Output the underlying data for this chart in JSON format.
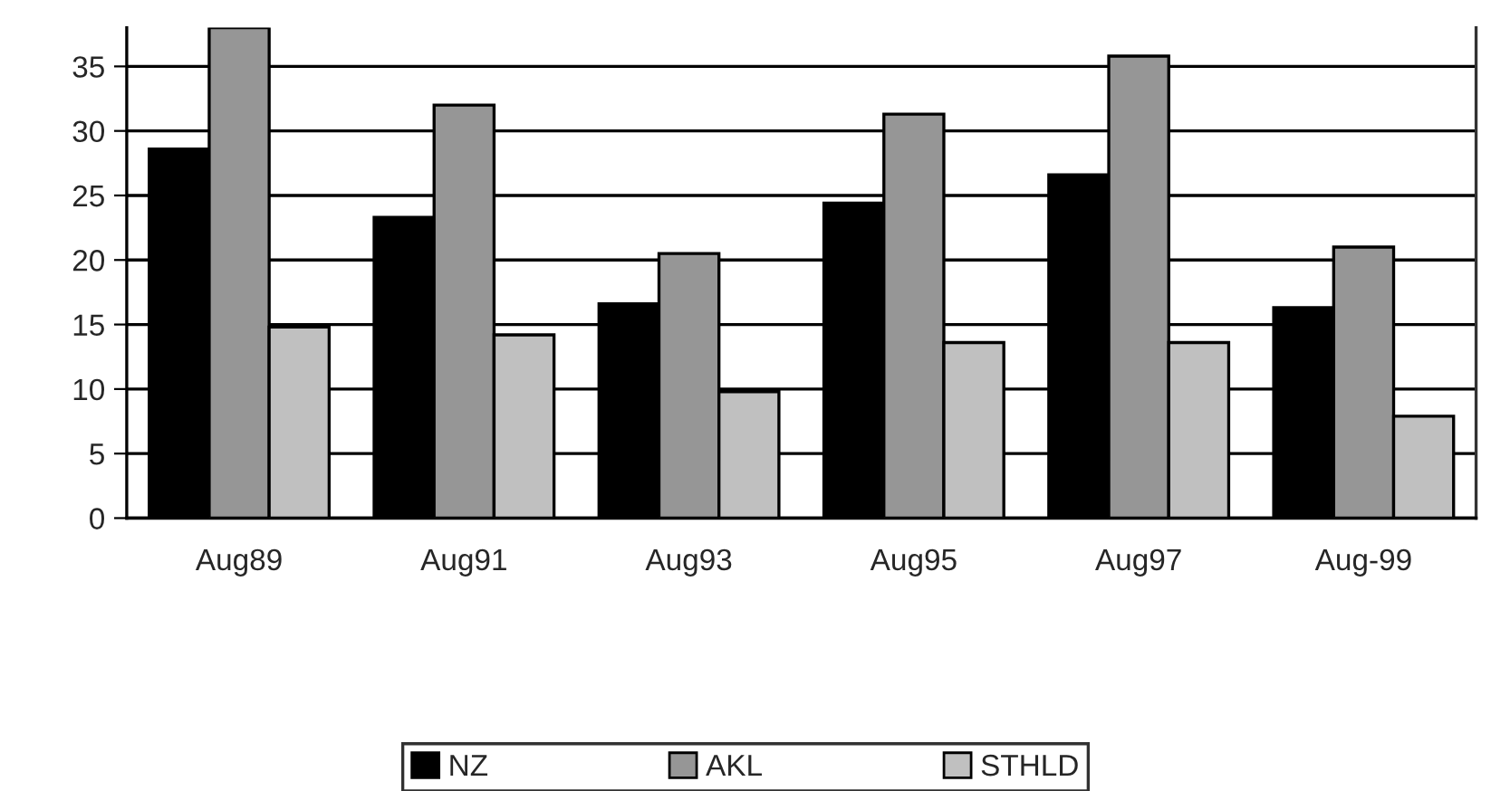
{
  "chart_data": {
    "type": "bar",
    "categories": [
      "Aug89",
      "Aug91",
      "Aug93",
      "Aug95",
      "Aug97",
      "Aug-99"
    ],
    "series": [
      {
        "name": "NZ",
        "color": "#000000",
        "values": [
          28.6,
          23.3,
          16.6,
          24.4,
          26.6,
          16.3
        ]
      },
      {
        "name": "AKL",
        "color": "#969696",
        "values": [
          38,
          32.0,
          20.5,
          31.3,
          35.8,
          21.0
        ]
      },
      {
        "name": "STHLD",
        "color": "#c0c0c0",
        "values": [
          14.8,
          14.2,
          9.8,
          13.6,
          13.6,
          7.9
        ]
      }
    ],
    "ylim": [
      0,
      38
    ],
    "yticks": [
      0,
      5,
      10,
      15,
      20,
      25,
      30,
      35
    ],
    "grid": "y",
    "legend": "bottom"
  }
}
